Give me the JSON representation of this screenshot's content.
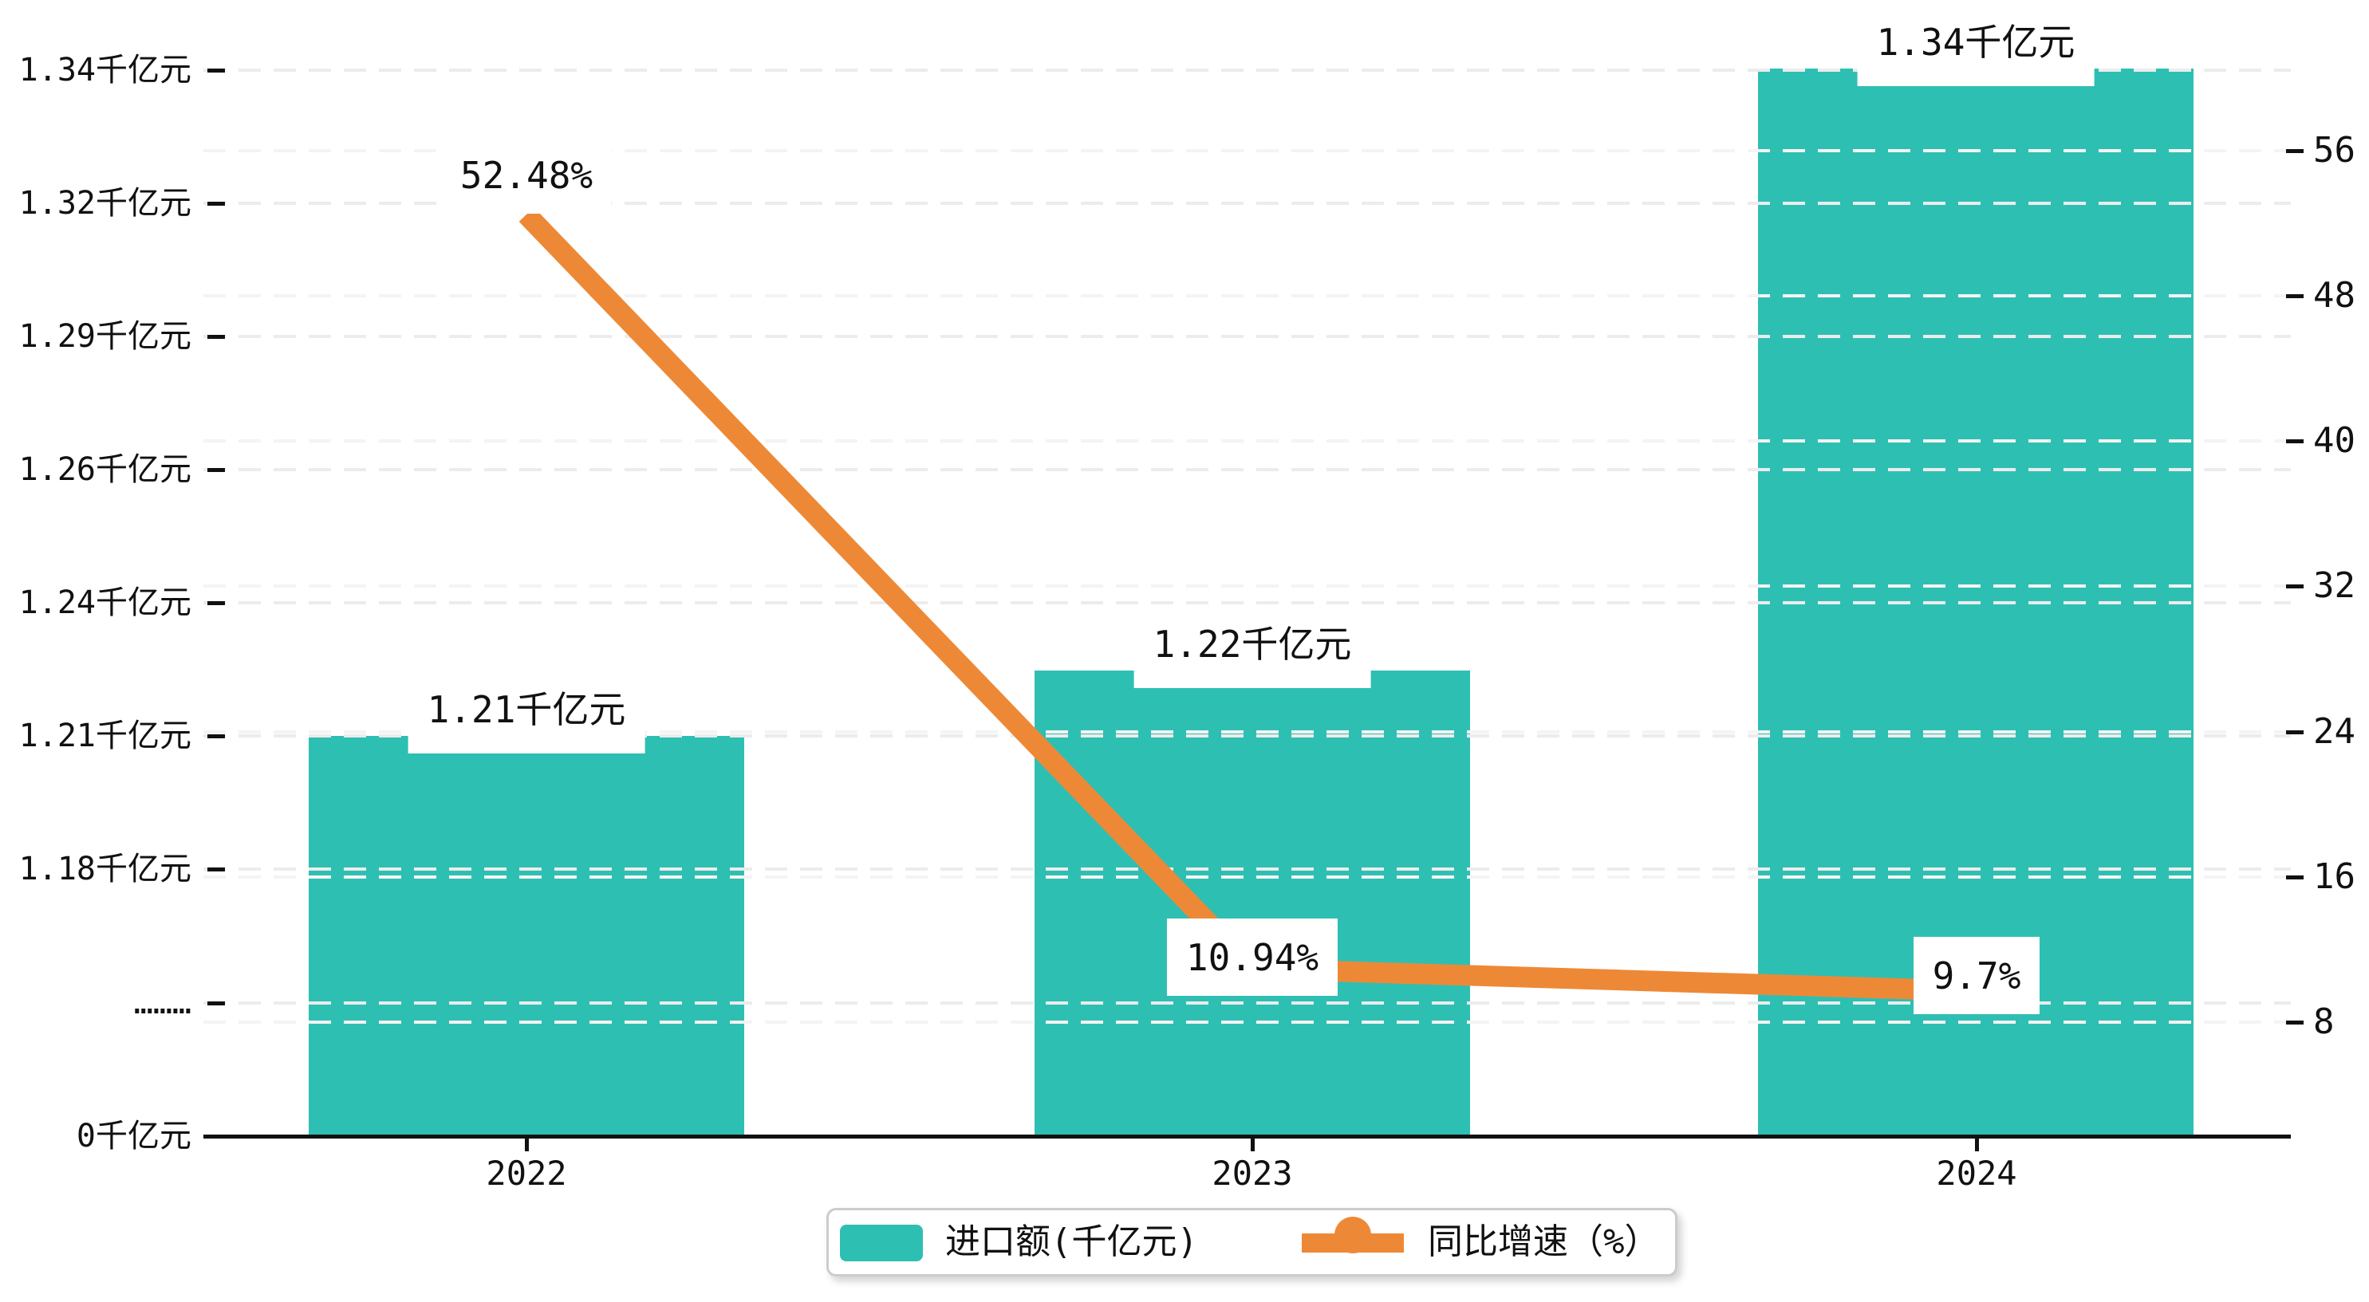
{
  "chart_data": {
    "type": "bar+line combo, dual y-axis",
    "categories": [
      "2022",
      "2023",
      "2024"
    ],
    "series": [
      {
        "name": "进口额(千亿元)",
        "type": "bar",
        "axis": "left",
        "color": "#2ebfb3",
        "values": [
          1.21,
          1.22,
          1.34
        ],
        "value_labels": [
          "1.21千亿元",
          "1.22千亿元",
          "1.34千亿元"
        ]
      },
      {
        "name": "同比增速（%）",
        "type": "line",
        "axis": "right",
        "color": "#ed8936",
        "values": [
          52.48,
          10.94,
          9.7
        ],
        "value_labels": [
          "52.48%",
          "10.94%",
          "9.7%"
        ]
      }
    ],
    "left_axis": {
      "unit": "千亿元",
      "tick_labels": [
        "1.34千亿元",
        "1.32千亿元",
        "1.29千亿元",
        "1.26千亿元",
        "1.24千亿元",
        "1.21千亿元",
        "1.18千亿元",
        "………",
        "0千亿元"
      ],
      "broken_axis_marker": "………"
    },
    "right_axis": {
      "tick_labels": [
        "56",
        "48",
        "40",
        "32",
        "24",
        "16",
        "8"
      ],
      "range": [
        8,
        56
      ],
      "step": 8
    },
    "x_axis": {
      "tick_labels": [
        "2022",
        "2023",
        "2024"
      ]
    },
    "legend": {
      "position": "bottom",
      "items": [
        {
          "label": "进口额(千亿元)",
          "marker": "bar-swatch",
          "color": "#2ebfb3"
        },
        {
          "label": "同比增速（%）",
          "marker": "line-with-dot",
          "color": "#ed8936"
        }
      ]
    },
    "grid": "horizontal dashed gridlines for both left and right axis ticks",
    "title": ""
  },
  "colors": {
    "bar": "#2ebfb3",
    "line": "#ed8936",
    "grid_left": "#ececec",
    "grid_right": "#f4f4f4",
    "axis": "#111111",
    "label_box_bg": "#ffffff",
    "legend_border": "#cccccc",
    "text": "#111111",
    "background": "#ffffff"
  }
}
